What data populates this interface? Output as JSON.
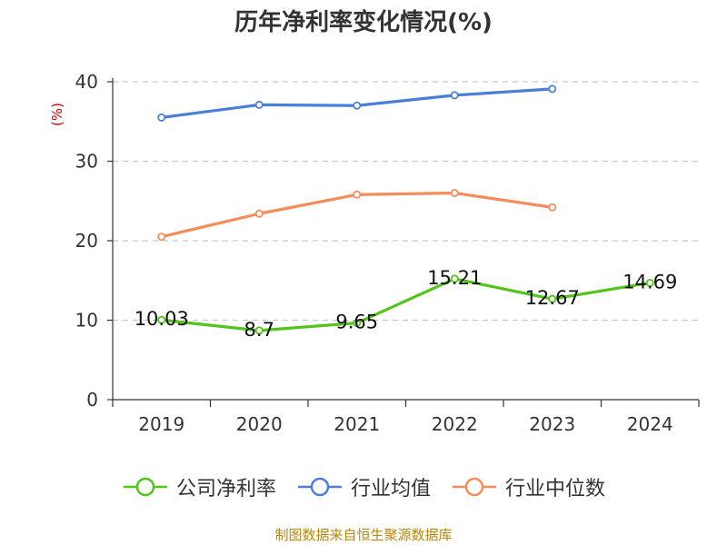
{
  "chart_data": {
    "type": "line",
    "title": "历年净利率变化情况(%)",
    "ylabel": "(%)",
    "xlabel": "",
    "categories": [
      "2019",
      "2020",
      "2021",
      "2022",
      "2023",
      "2024"
    ],
    "ylim": [
      0,
      40
    ],
    "yticks": [
      0,
      10,
      20,
      30,
      40
    ],
    "grid": true,
    "legend_position": "bottom",
    "series": [
      {
        "name": "公司净利率",
        "color": "#52c41a",
        "values": [
          10.03,
          8.7,
          9.65,
          15.21,
          12.67,
          14.69
        ],
        "show_labels": true
      },
      {
        "name": "行业均值",
        "color": "#4a7fd8",
        "values": [
          35.5,
          37.1,
          37.0,
          38.3,
          39.1,
          null
        ],
        "show_labels": false
      },
      {
        "name": "行业中位数",
        "color": "#f68c5a",
        "values": [
          20.5,
          23.4,
          25.8,
          26.0,
          24.2,
          null
        ],
        "show_labels": false
      }
    ]
  },
  "source": "制图数据来自恒生聚源数据库"
}
